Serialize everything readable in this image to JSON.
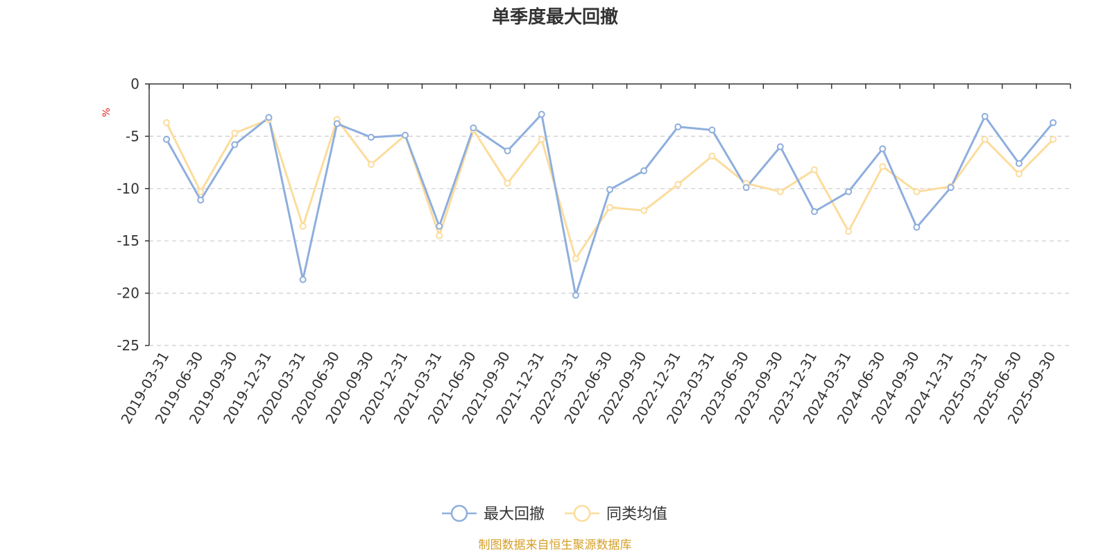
{
  "chart_data": {
    "type": "line",
    "title": "单季度最大回撤",
    "ylabel": "%",
    "ylim": [
      -25,
      0
    ],
    "yticks": [
      0,
      -5,
      -10,
      -15,
      -20,
      -25
    ],
    "grid": true,
    "legend_position": "bottom",
    "source": "制图数据来自恒生聚源数据库",
    "categories": [
      "2019-03-31",
      "2019-06-30",
      "2019-09-30",
      "2019-12-31",
      "2020-03-31",
      "2020-06-30",
      "2020-09-30",
      "2020-12-31",
      "2021-03-31",
      "2021-06-30",
      "2021-09-30",
      "2021-12-31",
      "2022-03-31",
      "2022-06-30",
      "2022-09-30",
      "2022-12-31",
      "2023-03-31",
      "2023-06-30",
      "2023-09-30",
      "2023-12-31",
      "2024-03-31",
      "2024-06-30",
      "2024-09-30",
      "2024-12-31",
      "2025-03-31",
      "2025-06-30",
      "2025-09-30"
    ],
    "series": [
      {
        "name": "最大回撤",
        "color": "#8eaedd",
        "values": [
          -5.3,
          -11.1,
          -5.8,
          -3.2,
          -18.7,
          -3.8,
          -5.1,
          -4.9,
          -13.6,
          -4.2,
          -6.4,
          -2.9,
          -20.2,
          -10.1,
          -8.3,
          -4.1,
          -4.4,
          -9.9,
          -6.0,
          -12.2,
          -10.3,
          -6.2,
          -13.7,
          -9.9,
          -3.1,
          -7.6,
          -3.7
        ]
      },
      {
        "name": "同类均值",
        "color": "#fcdc9c",
        "values": [
          -3.7,
          -10.3,
          -4.7,
          -3.4,
          -13.6,
          -3.4,
          -7.7,
          -4.9,
          -14.5,
          -4.4,
          -9.5,
          -5.3,
          -16.7,
          -11.8,
          -12.1,
          -9.6,
          -6.9,
          -9.5,
          -10.3,
          -8.2,
          -14.1,
          -7.9,
          -10.3,
          -9.8,
          -5.3,
          -8.6,
          -5.3
        ]
      }
    ]
  }
}
